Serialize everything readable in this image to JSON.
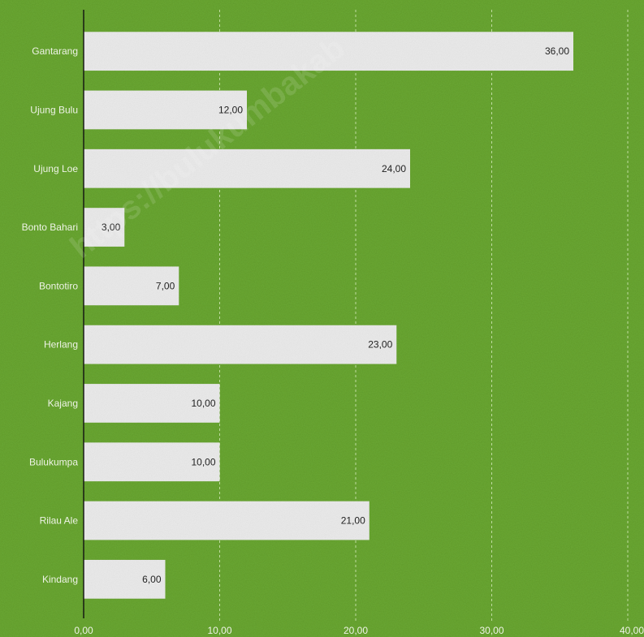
{
  "chart_data": {
    "type": "bar",
    "orientation": "horizontal",
    "categories": [
      "Gantarang",
      "Ujung Bulu",
      "Ujung Loe",
      "Bonto Bahari",
      "Bontotiro",
      "Herlang",
      "Kajang",
      "Bulukumpa",
      "Rilau Ale",
      "Kindang"
    ],
    "values": [
      36,
      12,
      24,
      3,
      7,
      23,
      10,
      10,
      21,
      6
    ],
    "value_labels": [
      "36,00",
      "12,00",
      "24,00",
      "3,00",
      "7,00",
      "23,00",
      "10,00",
      "10,00",
      "21,00",
      "6,00"
    ],
    "xlim": [
      0,
      40
    ],
    "x_ticks": [
      0,
      10,
      20,
      30,
      40
    ],
    "x_tick_labels": [
      "0,00",
      "10,00",
      "20,00",
      "30,00",
      "40,00"
    ],
    "grid": true,
    "legend": "none",
    "title": "",
    "xlabel": "",
    "ylabel": ""
  },
  "colors": {
    "background": "#6aa832",
    "bar": "#ececec",
    "axis": "#111111",
    "grid": "#cfe6b5",
    "label_text": "#eef3e6",
    "value_text": "#222222"
  },
  "watermark": "https://bulukumbakab"
}
